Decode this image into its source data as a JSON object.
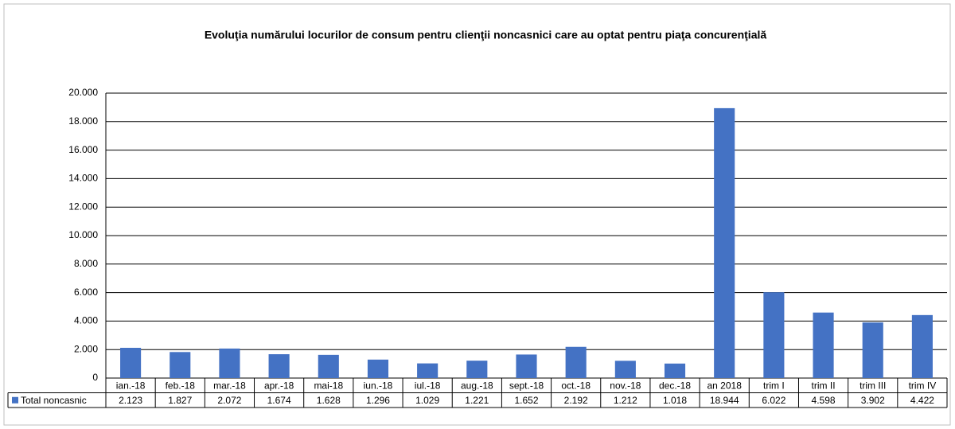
{
  "chart_data": {
    "type": "bar",
    "title": "Evoluţia numărului locurilor de consum pentru clienţii noncasnici care au optat pentru piaţa concurenţială",
    "categories": [
      "ian.-18",
      "feb.-18",
      "mar.-18",
      "apr.-18",
      "mai-18",
      "iun.-18",
      "iul.-18",
      "aug.-18",
      "sept.-18",
      "oct.-18",
      "nov.-18",
      "dec.-18",
      "an 2018",
      "trim I",
      "trim II",
      "trim III",
      "trim IV"
    ],
    "series": [
      {
        "name": "Total noncasnic",
        "color": "#4472c4",
        "values": [
          2123,
          1827,
          2072,
          1674,
          1628,
          1296,
          1029,
          1221,
          1652,
          2192,
          1212,
          1018,
          18944,
          6022,
          4598,
          3902,
          4422
        ],
        "value_labels": [
          "2.123",
          "1.827",
          "2.072",
          "1.674",
          "1.628",
          "1.296",
          "1.029",
          "1.221",
          "1.652",
          "2.192",
          "1.212",
          "1.018",
          "18.944",
          "6.022",
          "4.598",
          "3.902",
          "4.422"
        ]
      }
    ],
    "ylim": [
      0,
      20000
    ],
    "yticks": [
      0,
      {
        "value": 2000,
        "label": "2.000"
      },
      {
        "value": 4000,
        "label": "4.000"
      },
      {
        "value": 6000,
        "label": "6.000"
      },
      {
        "value": 8000,
        "label": "8.000"
      },
      {
        "value": 10000,
        "label": "10.000"
      },
      {
        "value": 12000,
        "label": "12.000"
      },
      {
        "value": 14000,
        "label": "14.000"
      },
      {
        "value": 16000,
        "label": "16.000"
      },
      {
        "value": 18000,
        "label": "18.000"
      },
      {
        "value": 20000,
        "label": "20.000"
      }
    ],
    "grid": true,
    "data_table": true
  }
}
